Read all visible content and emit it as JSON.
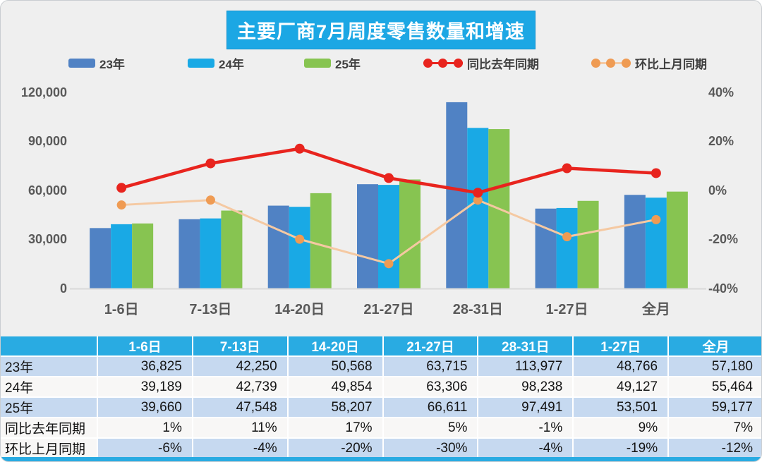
{
  "window": {
    "bg": "#EFEFEF",
    "border_color": "#C9CDD1"
  },
  "title": {
    "text": "主要厂商7月周度零售数量和增速",
    "bg": "#1CA7E4",
    "color": "#FFFFFF"
  },
  "colors": {
    "bar_23": "#5082C4",
    "bar_24": "#19A9E5",
    "bar_25": "#87C451",
    "yoy_line": "#E8241E",
    "mom_line": "#F5C9A2",
    "mom_marker": "#EF9B53",
    "axis_text": "#595959",
    "axis_line": "#D9D9D9",
    "table_header_bg": "#29ABE2",
    "table_shade_bg": "#C6D9F0",
    "table_plain_bg": "#F8F7F6"
  },
  "chart_data": {
    "type": "bar",
    "title": "主要厂商7月周度零售数量和增速",
    "categories": [
      "1-6日",
      "7-13日",
      "14-20日",
      "21-27日",
      "28-31日",
      "1-27日",
      "全月"
    ],
    "series": [
      {
        "name": "23年",
        "type": "bar",
        "axis": "left",
        "color": "#5082C4",
        "values": [
          36825,
          42250,
          50568,
          63715,
          113977,
          48766,
          57180
        ]
      },
      {
        "name": "24年",
        "type": "bar",
        "axis": "left",
        "color": "#19A9E5",
        "values": [
          39189,
          42739,
          49854,
          63306,
          98238,
          49127,
          55464
        ]
      },
      {
        "name": "25年",
        "type": "bar",
        "axis": "left",
        "color": "#87C451",
        "values": [
          39660,
          47548,
          58207,
          66611,
          97491,
          53501,
          59177
        ]
      },
      {
        "name": "同比去年同期",
        "type": "line",
        "axis": "right",
        "color": "#E8241E",
        "marker_color": "#E8241E",
        "values": [
          1,
          11,
          17,
          5,
          -1,
          9,
          7
        ]
      },
      {
        "name": "环比上月同期",
        "type": "line",
        "axis": "right",
        "color": "#F5C9A2",
        "marker_color": "#EF9B53",
        "values": [
          -6,
          -4,
          -20,
          -30,
          -4,
          -19,
          -12
        ]
      }
    ],
    "left_axis": {
      "min": 0,
      "max": 120000,
      "step": 30000,
      "labels": [
        "0",
        "30,000",
        "60,000",
        "90,000",
        "120,000"
      ]
    },
    "right_axis": {
      "min": -40,
      "max": 40,
      "step": 20,
      "labels": [
        "-40%",
        "-20%",
        "0%",
        "20%",
        "40%"
      ]
    },
    "grid": false,
    "legend_position": "top"
  },
  "table": {
    "header": [
      "",
      "1-6日",
      "7-13日",
      "14-20日",
      "21-27日",
      "28-31日",
      "1-27日",
      "全月"
    ],
    "rows": [
      {
        "label": "23年",
        "shade": true,
        "label_shade": true,
        "values": [
          "36,825",
          "42,250",
          "50,568",
          "63,715",
          "113,977",
          "48,766",
          "57,180"
        ]
      },
      {
        "label": "24年",
        "shade": false,
        "label_shade": false,
        "values": [
          "39,189",
          "42,739",
          "49,854",
          "63,306",
          "98,238",
          "49,127",
          "55,464"
        ]
      },
      {
        "label": "25年",
        "shade": true,
        "label_shade": true,
        "values": [
          "39,660",
          "47,548",
          "58,207",
          "66,611",
          "97,491",
          "53,501",
          "59,177"
        ]
      },
      {
        "label": "同比去年同期",
        "shade": false,
        "label_shade": false,
        "values": [
          "1%",
          "11%",
          "17%",
          "5%",
          "-1%",
          "9%",
          "7%"
        ]
      },
      {
        "label": "环比上月同期",
        "shade": true,
        "label_shade": false,
        "values": [
          "-6%",
          "-4%",
          "-20%",
          "-30%",
          "-4%",
          "-19%",
          "-12%"
        ]
      }
    ]
  }
}
